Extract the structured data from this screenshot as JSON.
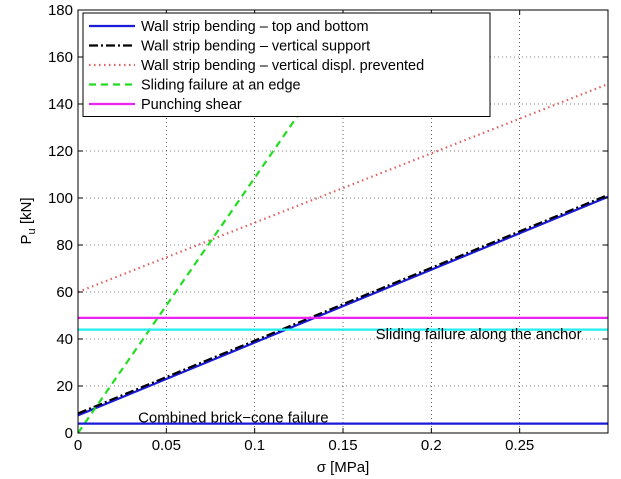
{
  "chart_data": {
    "type": "line",
    "xlabel": "σ [MPa]",
    "ylabel_main": "P",
    "ylabel_sub": "u",
    "ylabel_unit": " [kN]",
    "xlim": [
      0,
      0.3
    ],
    "ylim": [
      0,
      180
    ],
    "xticks": [
      0,
      0.05,
      0.1,
      0.15,
      0.2,
      0.25
    ],
    "xtick_labels": [
      "0",
      "0.05",
      "0.1",
      "0.15",
      "0.2",
      "0.25"
    ],
    "yticks": [
      0,
      20,
      40,
      60,
      80,
      100,
      120,
      140,
      160,
      180
    ],
    "ytick_labels": [
      "0",
      "20",
      "40",
      "60",
      "80",
      "100",
      "120",
      "140",
      "160",
      "180"
    ],
    "grid": true,
    "legend_position": "top-left",
    "series": [
      {
        "name": "Wall strip bending – top and bottom",
        "color": "#1a1adb",
        "style": "solid",
        "x": [
          0,
          0.3
        ],
        "y": [
          7.5,
          100.5
        ]
      },
      {
        "name": "Wall strip bending – vertical support",
        "color": "#000000",
        "style": "dashdot",
        "x": [
          0,
          0.3
        ],
        "y": [
          8.3,
          101.3
        ]
      },
      {
        "name": "Wall strip bending – vertical displ. prevented",
        "color": "#e06060",
        "style": "dotted",
        "x": [
          0,
          0.3
        ],
        "y": [
          60,
          148.5
        ]
      },
      {
        "name": "Sliding failure at an edge",
        "color": "#22dd22",
        "style": "dashed",
        "x": [
          0,
          0.175
        ],
        "y": [
          0,
          190
        ]
      },
      {
        "name": "Punching shear",
        "color": "#ee22ee",
        "style": "solid",
        "x": [
          0,
          0.3
        ],
        "y": [
          49,
          49
        ]
      },
      {
        "name": "",
        "color": "#22eeee",
        "style": "solid",
        "x": [
          0,
          0.3
        ],
        "y": [
          44,
          44
        ]
      },
      {
        "name": "",
        "color": "#1a1adb",
        "style": "solid",
        "x": [
          0,
          0.3
        ],
        "y": [
          4,
          4
        ]
      }
    ],
    "annotations": [
      {
        "text": "Sliding failure along the anchor",
        "x": 0.1685,
        "y": 40
      },
      {
        "text": "Combined brick−cone failure",
        "x": 0.034,
        "y": 4.5
      }
    ]
  }
}
